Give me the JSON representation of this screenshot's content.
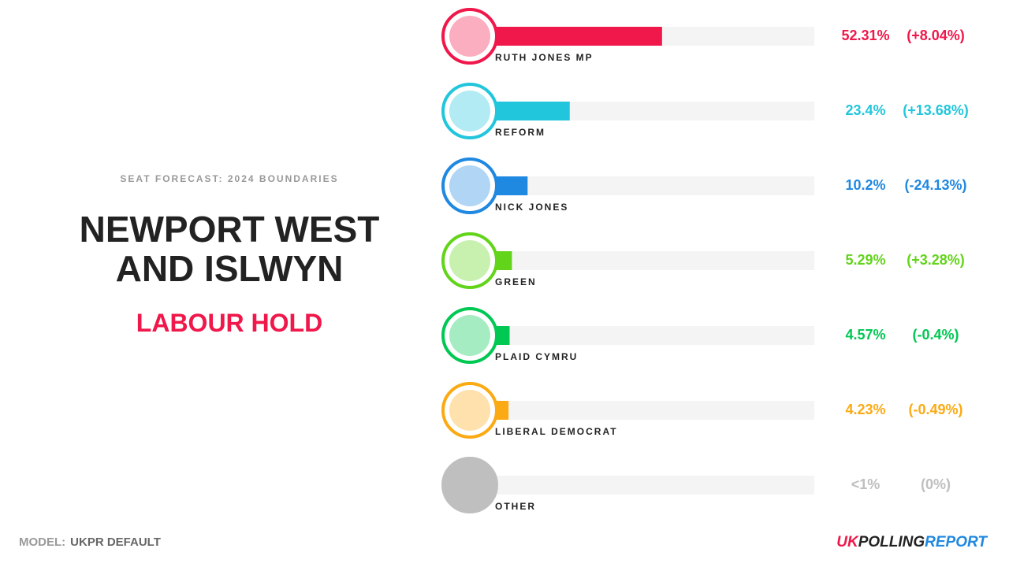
{
  "header": {
    "kicker": "SEAT FORECAST: 2024 BOUNDARIES",
    "title": "NEWPORT WEST AND ISLWYN",
    "result": "LABOUR HOLD"
  },
  "chart_data": {
    "type": "bar",
    "orientation": "horizontal",
    "categories": [
      "RUTH JONES MP",
      "REFORM",
      "NICK JONES",
      "GREEN",
      "PLAID CYMRU",
      "LIBERAL DEMOCRAT",
      "OTHER"
    ],
    "values": [
      52.31,
      23.4,
      10.2,
      5.29,
      4.57,
      4.23,
      0.5
    ],
    "value_labels": [
      "52.31%",
      "23.4%",
      "10.2%",
      "5.29%",
      "4.57%",
      "4.23%",
      "<1%"
    ],
    "changes": [
      8.04,
      13.68,
      -24.13,
      3.28,
      -0.4,
      -0.49,
      0
    ],
    "change_labels": [
      "(+8.04%)",
      "(+13.68%)",
      "(-24.13%)",
      "(+3.28%)",
      "(-0.4%)",
      "(-0.49%)",
      "(0%)"
    ],
    "colors": [
      "#f0174a",
      "#22c6dc",
      "#1f88e0",
      "#62d41a",
      "#00c853",
      "#fbaa14",
      "#bfbfbf"
    ],
    "xlim": [
      0,
      100
    ]
  },
  "footer": {
    "model_label": "MODEL:",
    "model": "UKPR DEFAULT",
    "brand": [
      "UK",
      "POLLING",
      "REPORT"
    ]
  }
}
